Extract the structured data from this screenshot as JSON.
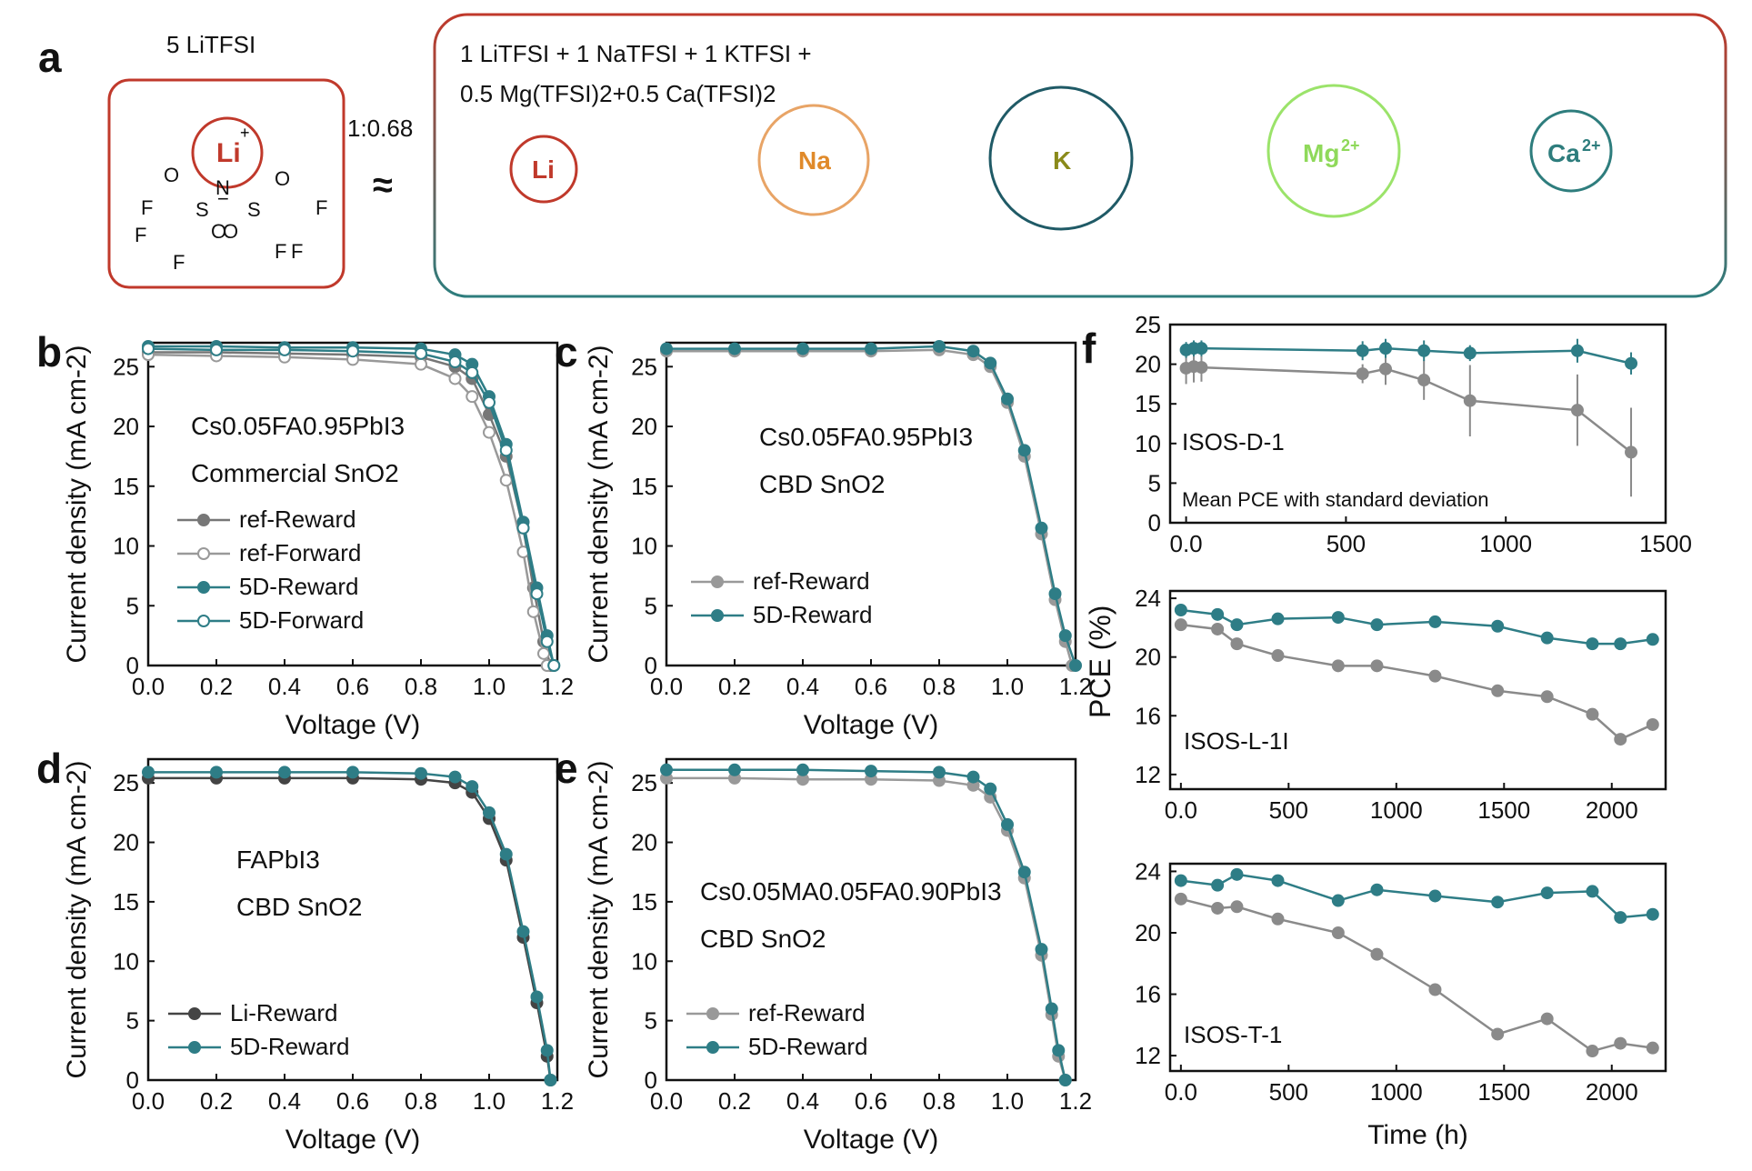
{
  "panel_a": {
    "letter": "a",
    "left_title": "5 LiTFSI",
    "ratio": "1:0.68",
    "approx": "≈",
    "right_line1": "1 LiTFSI + 1 NaTFSI + 1 KTFSI +",
    "right_line2": "0.5 Mg(TFSI)2+0.5 Ca(TFSI)2",
    "ions": [
      "Li",
      "Na",
      "K",
      "Mg2+",
      "Ca2+"
    ],
    "colors": {
      "left_box": "#c0392b",
      "right_box_top": "#c0392b",
      "right_box_bottom": "#2e7d7d"
    }
  },
  "chart_data": [
    {
      "panel": "b",
      "type": "line",
      "xlabel": "Voltage (V)",
      "ylabel": "Current density (mA cm-2)",
      "xlim": [
        0.0,
        1.2
      ],
      "ylim": [
        0,
        27
      ],
      "xticks": [
        0.0,
        0.2,
        0.4,
        0.6,
        0.8,
        1.0,
        1.2
      ],
      "yticks": [
        0,
        5,
        10,
        15,
        20,
        25
      ],
      "annot1": "Cs0.05FA0.95PbI3",
      "annot2": "Commercial SnO2",
      "series": [
        {
          "name": "ref-Reward",
          "color": "#777777",
          "style": "filled",
          "x": [
            0.0,
            0.2,
            0.4,
            0.6,
            0.8,
            0.9,
            0.95,
            1.0,
            1.05,
            1.1,
            1.13,
            1.16,
            1.18
          ],
          "y": [
            26.2,
            26.2,
            26.1,
            26.0,
            25.8,
            25.0,
            24.0,
            21.0,
            17.5,
            11.5,
            6.5,
            2.0,
            0.0
          ]
        },
        {
          "name": "ref-Forward",
          "color": "#999999",
          "style": "open",
          "x": [
            0.0,
            0.2,
            0.4,
            0.6,
            0.8,
            0.9,
            0.95,
            1.0,
            1.05,
            1.1,
            1.13,
            1.16,
            1.17
          ],
          "y": [
            26.0,
            25.9,
            25.8,
            25.6,
            25.2,
            24.0,
            22.5,
            19.5,
            15.5,
            9.5,
            4.5,
            1.0,
            0.0
          ]
        },
        {
          "name": "5D-Reward",
          "color": "#2e7d86",
          "style": "filled",
          "x": [
            0.0,
            0.2,
            0.4,
            0.6,
            0.8,
            0.9,
            0.95,
            1.0,
            1.05,
            1.1,
            1.14,
            1.17,
            1.19
          ],
          "y": [
            26.7,
            26.7,
            26.6,
            26.6,
            26.5,
            26.0,
            25.2,
            22.5,
            18.5,
            12.0,
            6.5,
            2.5,
            0.0
          ]
        },
        {
          "name": "5D-Forward",
          "color": "#2e7d86",
          "style": "open",
          "x": [
            0.0,
            0.2,
            0.4,
            0.6,
            0.8,
            0.9,
            0.95,
            1.0,
            1.05,
            1.1,
            1.14,
            1.17,
            1.19
          ],
          "y": [
            26.5,
            26.4,
            26.4,
            26.3,
            26.1,
            25.4,
            24.5,
            22.0,
            18.0,
            11.5,
            6.0,
            2.0,
            0.0
          ]
        }
      ]
    },
    {
      "panel": "c",
      "type": "line",
      "xlabel": "Voltage (V)",
      "ylabel": "Current density (mA cm-2)",
      "xlim": [
        0.0,
        1.2
      ],
      "ylim": [
        0,
        27
      ],
      "xticks": [
        0.0,
        0.2,
        0.4,
        0.6,
        0.8,
        1.0,
        1.2
      ],
      "yticks": [
        0,
        5,
        10,
        15,
        20,
        25
      ],
      "annot1": "Cs0.05FA0.95PbI3",
      "annot2": "CBD SnO2",
      "series": [
        {
          "name": "ref-Reward",
          "color": "#999999",
          "style": "filled",
          "x": [
            0.0,
            0.2,
            0.4,
            0.6,
            0.8,
            0.9,
            0.95,
            1.0,
            1.05,
            1.1,
            1.14,
            1.17,
            1.19
          ],
          "y": [
            26.3,
            26.3,
            26.3,
            26.3,
            26.4,
            26.0,
            25.0,
            22.0,
            17.5,
            11.0,
            5.5,
            2.0,
            0.0
          ]
        },
        {
          "name": "5D-Reward",
          "color": "#2e7d86",
          "style": "filled",
          "x": [
            0.0,
            0.2,
            0.4,
            0.6,
            0.8,
            0.9,
            0.95,
            1.0,
            1.05,
            1.1,
            1.14,
            1.17,
            1.2
          ],
          "y": [
            26.5,
            26.5,
            26.5,
            26.5,
            26.7,
            26.3,
            25.3,
            22.3,
            18.0,
            11.5,
            6.0,
            2.5,
            0.0
          ]
        }
      ]
    },
    {
      "panel": "d",
      "type": "line",
      "xlabel": "Voltage (V)",
      "ylabel": "Current density (mA cm-2)",
      "xlim": [
        0.0,
        1.2
      ],
      "ylim": [
        0,
        27
      ],
      "xticks": [
        0.0,
        0.2,
        0.4,
        0.6,
        0.8,
        1.0,
        1.2
      ],
      "yticks": [
        0,
        5,
        10,
        15,
        20,
        25
      ],
      "annot1": "FAPbI3",
      "annot2": "CBD SnO2",
      "series": [
        {
          "name": "Li-Reward",
          "color": "#444444",
          "style": "filled",
          "x": [
            0.0,
            0.2,
            0.4,
            0.6,
            0.8,
            0.9,
            0.95,
            1.0,
            1.05,
            1.1,
            1.14,
            1.17,
            1.18
          ],
          "y": [
            25.4,
            25.4,
            25.4,
            25.4,
            25.3,
            25.0,
            24.2,
            22.0,
            18.5,
            12.0,
            6.5,
            2.0,
            0.0
          ]
        },
        {
          "name": "5D-Reward",
          "color": "#2e7d86",
          "style": "filled",
          "x": [
            0.0,
            0.2,
            0.4,
            0.6,
            0.8,
            0.9,
            0.95,
            1.0,
            1.05,
            1.1,
            1.14,
            1.17,
            1.18
          ],
          "y": [
            25.9,
            25.9,
            25.9,
            25.9,
            25.8,
            25.5,
            24.7,
            22.5,
            19.0,
            12.5,
            7.0,
            2.5,
            0.0
          ]
        }
      ]
    },
    {
      "panel": "e",
      "type": "line",
      "xlabel": "Voltage (V)",
      "ylabel": "Current density (mA cm-2)",
      "xlim": [
        0.0,
        1.2
      ],
      "ylim": [
        0,
        27
      ],
      "xticks": [
        0.0,
        0.2,
        0.4,
        0.6,
        0.8,
        1.0,
        1.2
      ],
      "yticks": [
        0,
        5,
        10,
        15,
        20,
        25
      ],
      "annot1": "Cs0.05MA0.05FA0.90PbI3",
      "annot2": "CBD SnO2",
      "series": [
        {
          "name": "ref-Reward",
          "color": "#999999",
          "style": "filled",
          "x": [
            0.0,
            0.2,
            0.4,
            0.6,
            0.8,
            0.9,
            0.95,
            1.0,
            1.05,
            1.1,
            1.13,
            1.15,
            1.17
          ],
          "y": [
            25.4,
            25.4,
            25.3,
            25.3,
            25.2,
            24.8,
            23.8,
            21.0,
            17.0,
            10.5,
            5.5,
            2.0,
            0.0
          ]
        },
        {
          "name": "5D-Reward",
          "color": "#2e7d86",
          "style": "filled",
          "x": [
            0.0,
            0.2,
            0.4,
            0.6,
            0.8,
            0.9,
            0.95,
            1.0,
            1.05,
            1.1,
            1.13,
            1.15,
            1.17
          ],
          "y": [
            26.1,
            26.1,
            26.1,
            26.0,
            25.9,
            25.5,
            24.5,
            21.5,
            17.5,
            11.0,
            6.0,
            2.5,
            0.0
          ]
        }
      ]
    },
    {
      "panel": "f-top",
      "type": "line",
      "xlabel": "",
      "ylabel": "",
      "xlim": [
        -50,
        1500
      ],
      "ylim": [
        0,
        25
      ],
      "xticks": [
        0,
        500,
        1000,
        1500
      ],
      "yticks": [
        0,
        5,
        10,
        15,
        20,
        25
      ],
      "annot1": "ISOS-D-1",
      "annot2": "Mean PCE with standard deviation",
      "series": [
        {
          "name": "",
          "color": "#8a8a8a",
          "style": "filled",
          "x": [
            0,
            24,
            48,
            552,
            624,
            744,
            888,
            1224,
            1392
          ],
          "y": [
            19.5,
            19.7,
            19.6,
            18.8,
            19.4,
            18.0,
            15.4,
            14.2,
            8.9
          ],
          "err": [
            2.0,
            2.0,
            1.8,
            1.2,
            2.0,
            2.5,
            4.5,
            4.5,
            5.6
          ]
        },
        {
          "name": "",
          "color": "#2e7d86",
          "style": "filled",
          "x": [
            0,
            24,
            48,
            552,
            624,
            744,
            888,
            1224,
            1392
          ],
          "y": [
            21.8,
            22.0,
            22.0,
            21.7,
            22.0,
            21.7,
            21.4,
            21.7,
            20.1
          ],
          "err": [
            1.0,
            1.0,
            1.0,
            1.2,
            1.2,
            1.3,
            1.0,
            1.5,
            1.4
          ]
        }
      ]
    },
    {
      "panel": "f-mid",
      "type": "line",
      "xlabel": "",
      "ylabel": "",
      "xlim": [
        -50,
        2250
      ],
      "ylim": [
        11,
        24.5
      ],
      "xticks": [
        0,
        500,
        1000,
        1500,
        2000
      ],
      "yticks": [
        12,
        16,
        20,
        24
      ],
      "annot1": "ISOS-L-1I",
      "annot2": "",
      "series": [
        {
          "name": "",
          "color": "#8a8a8a",
          "style": "filled",
          "x": [
            0,
            170,
            260,
            450,
            730,
            910,
            1180,
            1470,
            1700,
            1910,
            2040,
            2190
          ],
          "y": [
            22.2,
            21.9,
            20.9,
            20.1,
            19.4,
            19.4,
            18.7,
            17.7,
            17.3,
            16.1,
            14.4,
            15.4
          ]
        },
        {
          "name": "",
          "color": "#2e7d86",
          "style": "filled",
          "x": [
            0,
            170,
            260,
            450,
            730,
            910,
            1180,
            1470,
            1700,
            1910,
            2040,
            2190
          ],
          "y": [
            23.2,
            22.9,
            22.2,
            22.6,
            22.7,
            22.2,
            22.4,
            22.1,
            21.3,
            20.9,
            20.9,
            21.2
          ]
        }
      ]
    },
    {
      "panel": "f-bottom",
      "type": "line",
      "xlabel": "Time (h)",
      "ylabel": "",
      "xlim": [
        -50,
        2250
      ],
      "ylim": [
        11,
        24.5
      ],
      "xticks": [
        0,
        500,
        1000,
        1500,
        2000
      ],
      "yticks": [
        12,
        16,
        20,
        24
      ],
      "annot1": "ISOS-T-1",
      "annot2": "",
      "series": [
        {
          "name": "",
          "color": "#8a8a8a",
          "style": "filled",
          "x": [
            0,
            170,
            260,
            450,
            730,
            910,
            1180,
            1470,
            1700,
            1910,
            2040,
            2190
          ],
          "y": [
            22.2,
            21.6,
            21.7,
            20.9,
            20.0,
            18.6,
            16.3,
            13.4,
            14.4,
            12.3,
            12.8,
            12.5
          ]
        },
        {
          "name": "",
          "color": "#2e7d86",
          "style": "filled",
          "x": [
            0,
            170,
            260,
            450,
            730,
            910,
            1180,
            1470,
            1700,
            1910,
            2040,
            2190
          ],
          "y": [
            23.4,
            23.1,
            23.8,
            23.4,
            22.1,
            22.8,
            22.4,
            22.0,
            22.6,
            22.7,
            21.0,
            21.2
          ]
        }
      ]
    }
  ],
  "f_shared": {
    "ylabel": "PCE (%)"
  },
  "panel_letters": {
    "b": "b",
    "c": "c",
    "d": "d",
    "e": "e",
    "f": "f"
  }
}
